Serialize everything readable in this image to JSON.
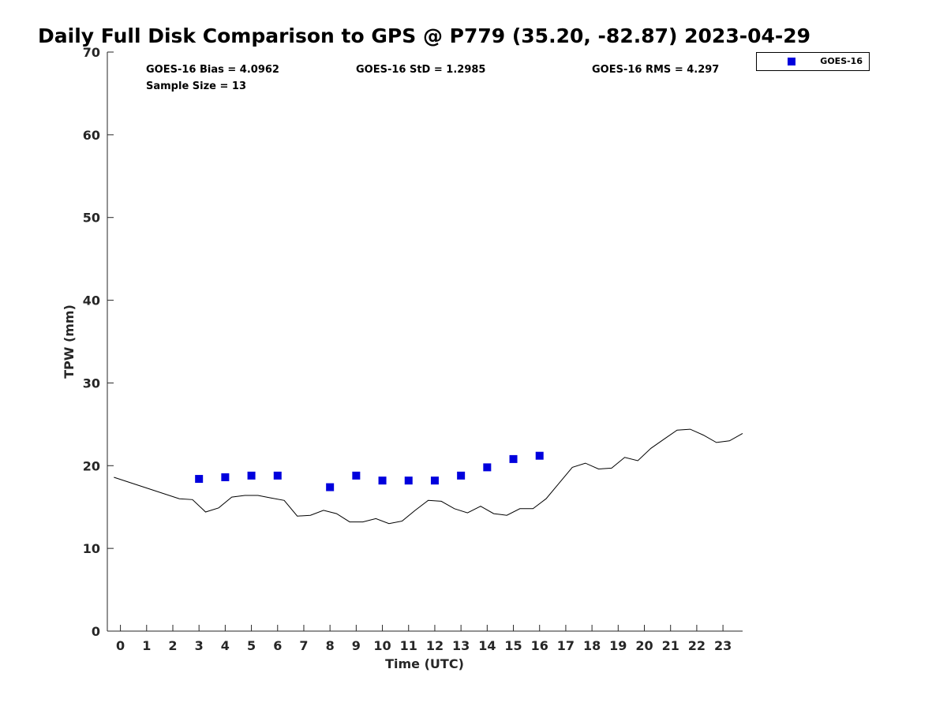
{
  "chart_data": {
    "type": "scatter",
    "title": "Daily Full Disk Comparison to GPS @ P779 (35.20, -82.87) 2023-04-29",
    "xlabel": "Time (UTC)",
    "ylabel": "TPW (mm)",
    "xlim": [
      -0.5,
      23.75
    ],
    "ylim": [
      0,
      70
    ],
    "xticks": [
      0,
      1,
      2,
      3,
      4,
      5,
      6,
      7,
      8,
      9,
      10,
      11,
      12,
      13,
      14,
      15,
      16,
      17,
      18,
      19,
      20,
      21,
      22,
      23
    ],
    "yticks": [
      0,
      10,
      20,
      30,
      40,
      50,
      60,
      70
    ],
    "grid": false,
    "legend_position": "top-right",
    "stats": {
      "bias": "GOES-16 Bias = 4.0962",
      "std": "GOES-16 StD = 1.2985",
      "rms": "GOES-16 RMS = 4.297",
      "sample": "Sample Size = 13"
    },
    "series": [
      {
        "name": "GOES-16",
        "kind": "scatter",
        "marker": "square",
        "color": "#0000dd",
        "x": [
          3,
          4,
          5,
          6,
          8,
          9,
          10,
          11,
          12,
          13,
          14,
          15,
          16
        ],
        "y": [
          18.4,
          18.6,
          18.8,
          18.8,
          17.4,
          18.8,
          18.2,
          18.2,
          18.2,
          18.8,
          19.8,
          20.8,
          21.2
        ]
      },
      {
        "kind": "line",
        "color": "#000000",
        "x": [
          -0.25,
          2.25,
          2.75,
          3.25,
          3.75,
          4.25,
          4.75,
          5.25,
          5.75,
          6.25,
          6.75,
          7.25,
          7.75,
          8.25,
          8.75,
          9.25,
          9.75,
          10.25,
          10.75,
          11.25,
          11.75,
          12.25,
          12.75,
          13.25,
          13.75,
          14.25,
          14.75,
          15.25,
          15.75,
          16.25,
          16.75,
          17.25,
          17.75,
          18.25,
          18.75,
          19.25,
          19.75,
          20.25,
          20.75,
          21.25,
          21.75,
          22.25,
          22.75,
          23.25,
          23.75
        ],
        "y": [
          18.6,
          16.0,
          15.9,
          14.4,
          14.9,
          16.2,
          16.4,
          16.4,
          16.1,
          15.8,
          13.9,
          14.0,
          14.6,
          14.2,
          13.2,
          13.2,
          13.6,
          13.0,
          13.3,
          14.6,
          15.8,
          15.7,
          14.8,
          14.3,
          15.1,
          14.2,
          14.0,
          14.8,
          14.8,
          16.0,
          17.9,
          19.8,
          20.3,
          19.6,
          19.7,
          21.0,
          20.6,
          22.1,
          23.2,
          24.3,
          24.4,
          23.7,
          22.8,
          23.0,
          23.9
        ]
      }
    ]
  }
}
